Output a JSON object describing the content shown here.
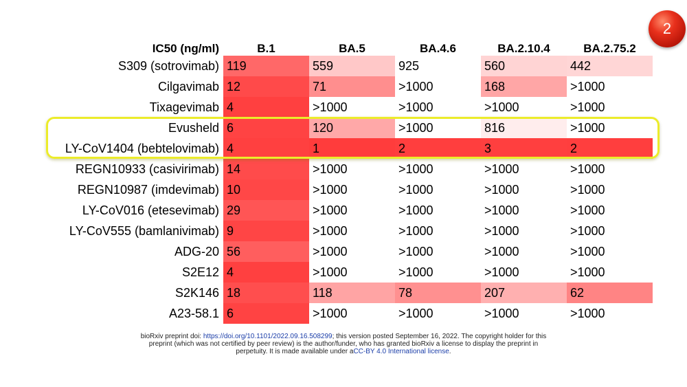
{
  "badge": "2",
  "table": {
    "header": [
      "IC50 (ng/ml)",
      "B.1",
      "BA.5",
      "BA.4.6",
      "BA.2.10.4",
      "BA.2.75.2"
    ],
    "rows": [
      {
        "name": "S309 (sotrovimab)",
        "values": [
          "119",
          "559",
          "925",
          "560",
          "442"
        ],
        "colors": [
          "#ff6868",
          "#ffc8c8",
          "#ffffff",
          "#ffd4d4",
          "#ffd6d6"
        ]
      },
      {
        "name": "Cilgavimab",
        "values": [
          "12",
          "71",
          ">1000",
          "168",
          ">1000"
        ],
        "colors": [
          "#ff4a4a",
          "#ff8e8e",
          "#ffffff",
          "#ffa6a6",
          "#ffffff"
        ]
      },
      {
        "name": "Tixagevimab",
        "values": [
          "4",
          ">1000",
          ">1000",
          ">1000",
          ">1000"
        ],
        "colors": [
          "#ff4040",
          "#ffffff",
          "#ffffff",
          "#ffffff",
          "#ffffff"
        ]
      },
      {
        "name": "Evusheld",
        "values": [
          "6",
          "120",
          ">1000",
          "816",
          ">1000"
        ],
        "colors": [
          "#ff4343",
          "#ffa8a8",
          "#ffffff",
          "#ffeded",
          "#ffffff"
        ]
      },
      {
        "name": "LY-CoV1404 (bebtelovimab)",
        "values": [
          "4",
          "1",
          "2",
          "3",
          "2"
        ],
        "colors": [
          "#ff4040",
          "#ff3c3c",
          "#ff3e3e",
          "#ff3f3f",
          "#ff3e3e"
        ]
      },
      {
        "name": "REGN10933 (casivirimab)",
        "values": [
          "14",
          ">1000",
          ">1000",
          ">1000",
          ">1000"
        ],
        "colors": [
          "#ff4b4b",
          "#ffffff",
          "#ffffff",
          "#ffffff",
          "#ffffff"
        ]
      },
      {
        "name": "REGN10987 (imdevimab)",
        "values": [
          "10",
          ">1000",
          ">1000",
          ">1000",
          ">1000"
        ],
        "colors": [
          "#ff4747",
          "#ffffff",
          "#ffffff",
          "#ffffff",
          "#ffffff"
        ]
      },
      {
        "name": "LY-CoV016 (etesevimab)",
        "values": [
          "29",
          ">1000",
          ">1000",
          ">1000",
          ">1000"
        ],
        "colors": [
          "#ff5555",
          "#ffffff",
          "#ffffff",
          "#ffffff",
          "#ffffff"
        ]
      },
      {
        "name": "LY-CoV555 (bamlanivimab)",
        "values": [
          "9",
          ">1000",
          ">1000",
          ">1000",
          ">1000"
        ],
        "colors": [
          "#ff4545",
          "#ffffff",
          "#ffffff",
          "#ffffff",
          "#ffffff"
        ]
      },
      {
        "name": "ADG-20",
        "values": [
          "56",
          ">1000",
          ">1000",
          ">1000",
          ">1000"
        ],
        "colors": [
          "#ff5e5e",
          "#ffffff",
          "#ffffff",
          "#ffffff",
          "#ffffff"
        ]
      },
      {
        "name": "S2E12",
        "values": [
          "4",
          ">1000",
          ">1000",
          ">1000",
          ">1000"
        ],
        "colors": [
          "#ff4040",
          "#ffffff",
          "#ffffff",
          "#ffffff",
          "#ffffff"
        ]
      },
      {
        "name": "S2K146",
        "values": [
          "18",
          "118",
          "78",
          "207",
          "62"
        ],
        "colors": [
          "#ff4e4e",
          "#ffa4a4",
          "#ff9090",
          "#ffb0b0",
          "#ff8484"
        ]
      },
      {
        "name": "A23-58.1",
        "values": [
          "6",
          ">1000",
          ">1000",
          ">1000",
          ">1000"
        ],
        "colors": [
          "#ff4343",
          "#ffffff",
          "#ffffff",
          "#ffffff",
          "#ffffff"
        ]
      }
    ]
  },
  "footer": {
    "prefix": "bioRxiv preprint doi: ",
    "doi": "https://doi.org/10.1101/2022.09.16.508299",
    "line1_rest": "; this version posted September 16, 2022. The copyright holder for this",
    "line2": "preprint (which was not certified by peer review) is the author/funder, who has granted bioRxiv a license to display the preprint in",
    "line3_prefix": "perpetuity. It is made available under a",
    "license": "CC-BY 4.0 International license",
    "line3_suffix": "."
  }
}
